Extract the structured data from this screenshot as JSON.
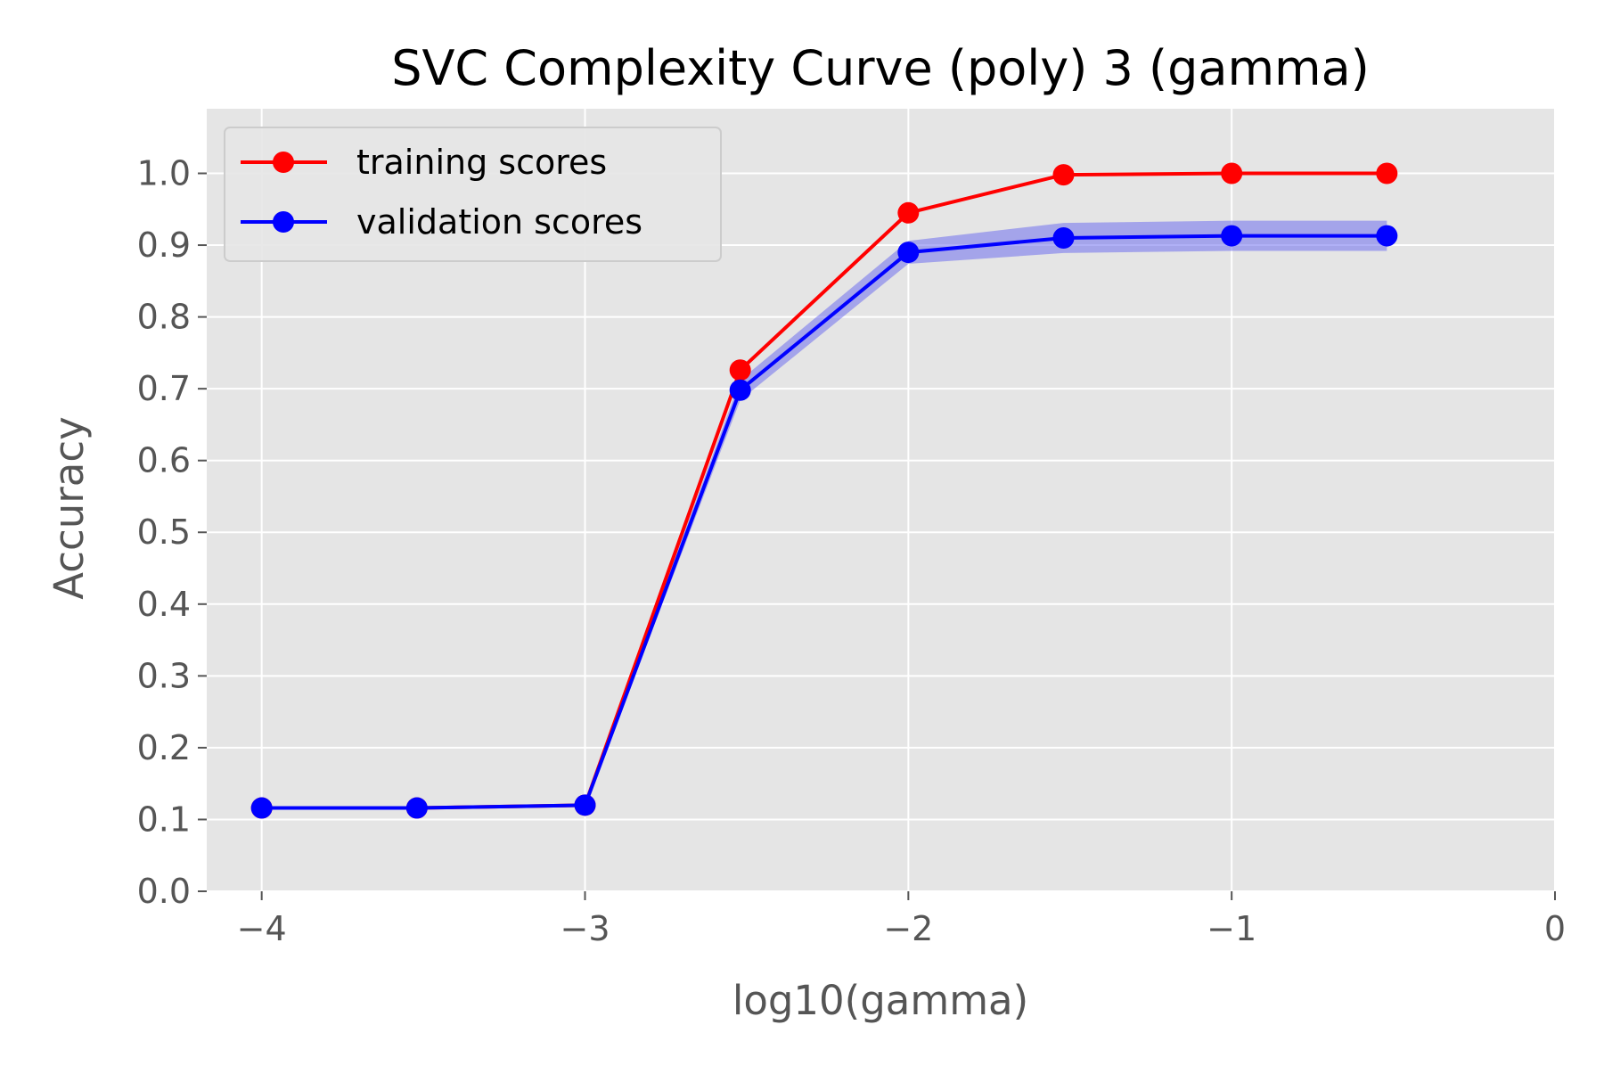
{
  "chart_data": {
    "type": "line",
    "title": "SVC Complexity Curve (poly) 3 (gamma)",
    "xlabel": "log10(gamma)",
    "ylabel": "Accuracy",
    "xlim": [
      -4.17,
      0
    ],
    "ylim": [
      0,
      1.09
    ],
    "xticks": [
      -4,
      -3,
      -2,
      -1,
      0
    ],
    "xtick_labels": [
      "−4",
      "−3",
      "−2",
      "−1",
      "0"
    ],
    "yticks": [
      0.0,
      0.1,
      0.2,
      0.3,
      0.4,
      0.5,
      0.6,
      0.7,
      0.8,
      0.9,
      1.0
    ],
    "ytick_labels": [
      "0.0",
      "0.1",
      "0.2",
      "0.3",
      "0.4",
      "0.5",
      "0.6",
      "0.7",
      "0.8",
      "0.9",
      "1.0"
    ],
    "grid": true,
    "legend_position": "top-left",
    "background": "#e5e5e5",
    "series": [
      {
        "name": "training scores",
        "color": "#ff0000",
        "x": [
          -4,
          -3.52,
          -3,
          -2.52,
          -2,
          -1.52,
          -1,
          -0.52
        ],
        "y": [
          0.116,
          0.116,
          0.12,
          0.726,
          0.945,
          0.998,
          1.0,
          1.0
        ]
      },
      {
        "name": "validation scores",
        "color": "#0000ff",
        "band_color": "#6f6fee",
        "x": [
          -4,
          -3.52,
          -3,
          -2.52,
          -2,
          -1.52,
          -1,
          -0.52
        ],
        "y": [
          0.116,
          0.116,
          0.12,
          0.698,
          0.89,
          0.91,
          0.913,
          0.913
        ],
        "y_lower": [
          0.114,
          0.114,
          0.118,
          0.684,
          0.874,
          0.889,
          0.892,
          0.892
        ],
        "y_upper": [
          0.118,
          0.118,
          0.122,
          0.712,
          0.906,
          0.931,
          0.934,
          0.934
        ]
      }
    ]
  }
}
